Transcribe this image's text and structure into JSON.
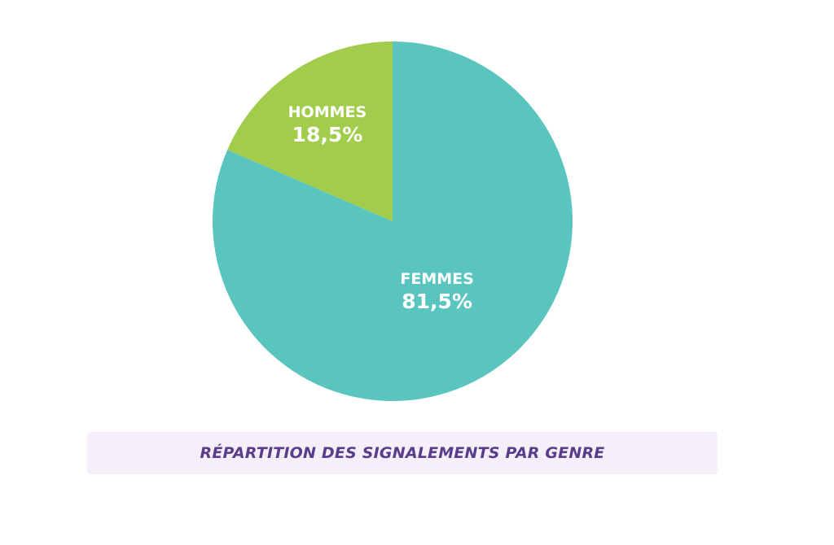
{
  "chart_data": {
    "type": "pie",
    "title": "RÉPARTITION DES SIGNALEMENTS PAR GENRE",
    "slices": [
      {
        "name": "FEMMES",
        "value": 81.5,
        "value_label": "81,5%",
        "color": "#5ac4bf"
      },
      {
        "name": "HOMMES",
        "value": 18.5,
        "value_label": "18,5%",
        "color": "#a2cd4c"
      }
    ],
    "start_angle_deg": 0,
    "direction": "clockwise"
  },
  "caption": {
    "text": "RÉPARTITION DES SIGNALEMENTS PAR GENRE",
    "color": "#5a3d8a",
    "background": "#f4eff8"
  }
}
